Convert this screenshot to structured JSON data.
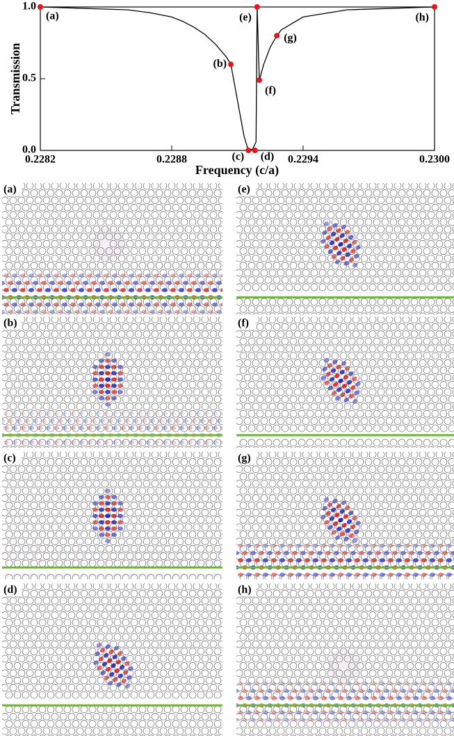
{
  "chart_data": {
    "type": "line",
    "x_label": "Frequency (c/a)",
    "y_label": "Transmission",
    "xlim": [
      0.2282,
      0.23
    ],
    "ylim": [
      0,
      1
    ],
    "xticks": [
      0.2282,
      0.2288,
      0.2294,
      {
        "value": 0.23,
        "label": "0.2300"
      }
    ],
    "yticks": [
      {
        "value": 0,
        "label": "0.0"
      },
      0.5,
      {
        "value": 1,
        "label": "1.0"
      }
    ],
    "series": [
      {
        "color": "#000000",
        "x": [
          0.2282,
          0.2284,
          0.2286,
          0.2287,
          0.2288,
          0.22885,
          0.2289,
          0.22895,
          0.229,
          0.22905,
          0.22907,
          0.2291,
          0.22913,
          0.22915,
          0.22917,
          0.229185,
          0.22919,
          0.2292,
          0.22922,
          0.22925,
          0.22928,
          0.2293,
          0.2294,
          0.2296,
          0.2298,
          0.23
        ],
        "values": [
          1.0,
          0.99,
          0.98,
          0.96,
          0.93,
          0.9,
          0.86,
          0.81,
          0.74,
          0.65,
          0.6,
          0.35,
          0.1,
          0.0,
          0.01,
          0.06,
          1.0,
          0.49,
          0.6,
          0.72,
          0.8,
          0.84,
          0.93,
          0.98,
          0.99,
          1.0
        ]
      },
      {
        "color": "#e8141c",
        "x": [
          0.2282,
          0.22907,
          0.22915,
          0.22918,
          0.22919,
          0.2292,
          0.22928,
          0.23
        ],
        "values": [
          1.0,
          0.6,
          0.0,
          0.0,
          1.0,
          0.49,
          0.8,
          1.0
        ],
        "labels": [
          "(a)",
          "(b)",
          "(c)",
          "(d)",
          "(e)",
          "(f)",
          "(g)",
          "(h)"
        ]
      }
    ]
  },
  "panels": [
    {
      "label": "(a)"
    },
    {
      "label": "(b)"
    },
    {
      "label": "(c)"
    },
    {
      "label": "(d)"
    },
    {
      "label": "(e)"
    },
    {
      "label": "(f)"
    },
    {
      "label": "(g)"
    },
    {
      "label": "(h)"
    }
  ]
}
